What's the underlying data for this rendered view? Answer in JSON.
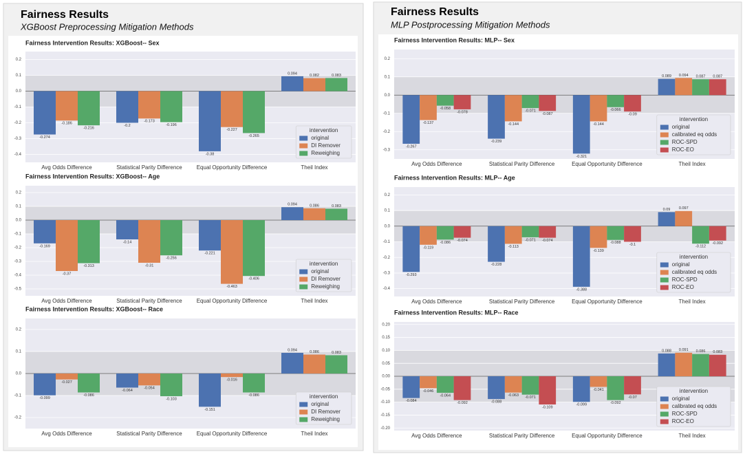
{
  "panels": [
    {
      "title": "Fairness Results",
      "subtitle": "XGBoost Preprocessing Mitigation Methods"
    },
    {
      "title": "Fairness Results",
      "subtitle": "MLP Postprocessing Mitigation Methods"
    }
  ],
  "chart_data": [
    {
      "type": "bar",
      "title": "Fairness Intervention Results: XGBoost-- Sex",
      "categories": [
        "Avg Odds Difference",
        "Statistical Parity Difference",
        "Equal Opportunity Difference",
        "Theil Index"
      ],
      "series": [
        {
          "name": "original",
          "color": "#4c72b0",
          "values": [
            -0.274,
            -0.2,
            -0.38,
            0.094
          ]
        },
        {
          "name": "DI Remover",
          "color": "#dd8452",
          "values": [
            -0.186,
            -0.173,
            -0.227,
            0.082
          ]
        },
        {
          "name": "Reweighing",
          "color": "#55a868",
          "values": [
            -0.216,
            -0.196,
            -0.265,
            0.083
          ]
        }
      ],
      "ylim": [
        -0.45,
        0.25
      ],
      "yticks": [
        0.2,
        0.1,
        {
          "value": 0,
          "label": "0.0"
        },
        -0.1,
        -0.2,
        -0.3,
        -0.4
      ],
      "grid": true,
      "shaded_range": [
        -0.1,
        0.1
      ],
      "legend_title": "intervention",
      "legend": "lower right"
    },
    {
      "type": "bar",
      "title": "Fairness Intervention Results: XGBoost-- Age",
      "categories": [
        "Avg Odds Difference",
        "Statistical Parity Difference",
        "Equal Opportunity Difference",
        "Theil Index"
      ],
      "series": [
        {
          "name": "original",
          "color": "#4c72b0",
          "values": [
            -0.169,
            -0.14,
            -0.221,
            0.094
          ]
        },
        {
          "name": "DI Remover",
          "color": "#dd8452",
          "values": [
            -0.37,
            -0.31,
            -0.463,
            0.086
          ]
        },
        {
          "name": "Reweighing",
          "color": "#55a868",
          "values": [
            -0.313,
            -0.256,
            -0.406,
            0.083
          ]
        }
      ],
      "ylim": [
        -0.55,
        0.25
      ],
      "yticks": [
        0.2,
        0.1,
        {
          "value": 0,
          "label": "0.0"
        },
        -0.1,
        -0.2,
        -0.3,
        -0.4,
        -0.5
      ],
      "grid": true,
      "shaded_range": [
        -0.1,
        0.1
      ],
      "legend_title": "intervention",
      "legend": "lower right"
    },
    {
      "type": "bar",
      "title": "Fairness Intervention Results: XGBoost-- Race",
      "categories": [
        "Avg Odds Difference",
        "Statistical Parity Difference",
        "Equal Opportunity Difference",
        "Theil Index"
      ],
      "series": [
        {
          "name": "original",
          "color": "#4c72b0",
          "values": [
            -0.099,
            -0.064,
            -0.151,
            0.094
          ]
        },
        {
          "name": "DI Remover",
          "color": "#dd8452",
          "values": [
            -0.027,
            -0.054,
            -0.016,
            0.086
          ]
        },
        {
          "name": "Reweighing",
          "color": "#55a868",
          "values": [
            -0.086,
            -0.103,
            -0.086,
            0.083
          ]
        }
      ],
      "ylim": [
        -0.25,
        0.25
      ],
      "yticks": [
        0.2,
        0.1,
        {
          "value": 0,
          "label": "0.0"
        },
        -0.1,
        -0.2
      ],
      "grid": true,
      "shaded_range": [
        -0.1,
        0.1
      ],
      "legend_title": "intervention",
      "legend": "lower right"
    },
    {
      "type": "bar",
      "title": "Fairness Intervention Results: MLP-- Sex",
      "categories": [
        "Avg Odds Difference",
        "Statistical Parity Difference",
        "Equal Opportunity Difference",
        "Theil Index"
      ],
      "series": [
        {
          "name": "original",
          "color": "#4c72b0",
          "values": [
            -0.267,
            -0.239,
            -0.321,
            0.089
          ]
        },
        {
          "name": "calibrated eq odds",
          "color": "#dd8452",
          "values": [
            -0.137,
            -0.144,
            -0.144,
            0.094
          ]
        },
        {
          "name": "ROC-SPD",
          "color": "#55a868",
          "values": [
            -0.058,
            -0.071,
            -0.066,
            0.087
          ]
        },
        {
          "name": "ROC-EO",
          "color": "#c44e52",
          "values": [
            -0.078,
            -0.087,
            -0.09,
            0.087
          ]
        }
      ],
      "ylim": [
        -0.35,
        0.25
      ],
      "yticks": [
        0.2,
        0.1,
        {
          "value": 0,
          "label": "0.0"
        },
        -0.1,
        -0.2,
        -0.3
      ],
      "grid": true,
      "shaded_range": [
        -0.1,
        0.1
      ],
      "legend_title": "intervention",
      "legend": "lower right"
    },
    {
      "type": "bar",
      "title": "Fairness Intervention Results: MLP-- Age",
      "categories": [
        "Avg Odds Difference",
        "Statistical Parity Difference",
        "Equal Opportunity Difference",
        "Theil Index"
      ],
      "series": [
        {
          "name": "original",
          "color": "#4c72b0",
          "values": [
            -0.293,
            -0.228,
            -0.388,
            0.09
          ]
        },
        {
          "name": "calibrated eq odds",
          "color": "#dd8452",
          "values": [
            -0.119,
            -0.113,
            -0.139,
            0.097
          ]
        },
        {
          "name": "ROC-SPD",
          "color": "#55a868",
          "values": [
            -0.086,
            -0.071,
            -0.088,
            -0.112
          ]
        },
        {
          "name": "ROC-EO",
          "color": "#c44e52",
          "values": [
            -0.074,
            -0.074,
            -0.1,
            -0.092
          ]
        }
      ],
      "ylim": [
        -0.45,
        0.25
      ],
      "yticks": [
        0.2,
        0.1,
        {
          "value": 0,
          "label": "0.0"
        },
        -0.1,
        -0.2,
        -0.3,
        -0.4
      ],
      "grid": true,
      "shaded_range": [
        -0.1,
        0.1
      ],
      "legend_title": "intervention",
      "legend": "lower right"
    },
    {
      "type": "bar",
      "title": "Fairness Intervention Results: MLP-- Race",
      "categories": [
        "Avg Odds Difference",
        "Statistical Parity Difference",
        "Equal Opportunity Difference",
        "Theil Index"
      ],
      "series": [
        {
          "name": "original",
          "color": "#4c72b0",
          "values": [
            -0.084,
            -0.088,
            -0.099,
            0.088
          ]
        },
        {
          "name": "calibrated eq odds",
          "color": "#dd8452",
          "values": [
            -0.046,
            -0.063,
            -0.041,
            0.091
          ]
        },
        {
          "name": "ROC-SPD",
          "color": "#55a868",
          "values": [
            -0.064,
            -0.071,
            -0.092,
            0.086
          ]
        },
        {
          "name": "ROC-EO",
          "color": "#c44e52",
          "values": [
            -0.092,
            -0.109,
            -0.07,
            0.083
          ]
        }
      ],
      "ylim": [
        -0.21,
        0.21
      ],
      "yticks": [
        {
          "value": 0.2,
          "label": "0.20"
        },
        {
          "value": 0.15,
          "label": "0.15"
        },
        {
          "value": 0.1,
          "label": "0.10"
        },
        {
          "value": 0.05,
          "label": "0.05"
        },
        {
          "value": 0,
          "label": "0.00"
        },
        {
          "value": -0.05,
          "label": "-0.05"
        },
        {
          "value": -0.1,
          "label": "-0.10"
        },
        {
          "value": -0.15,
          "label": "-0.15"
        },
        {
          "value": -0.2,
          "label": "-0.20"
        }
      ],
      "grid": true,
      "shaded_range": [
        -0.1,
        0.1
      ],
      "legend_title": "intervention",
      "legend": "lower right"
    }
  ]
}
